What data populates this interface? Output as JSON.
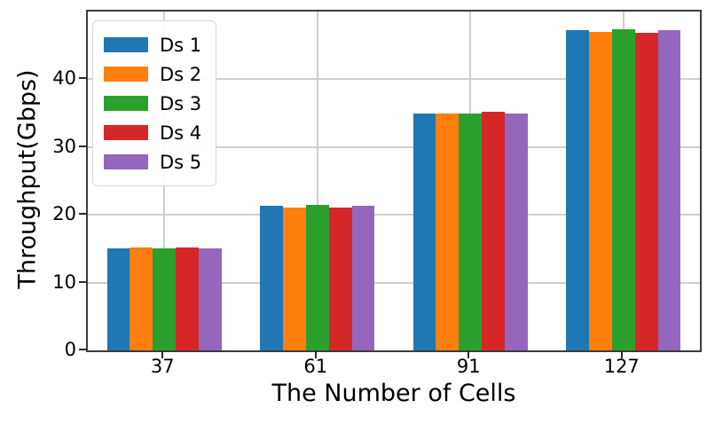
{
  "chart_data": {
    "type": "bar",
    "title": "",
    "xlabel": "The Number of Cells",
    "ylabel": "Throughput(Gbps)",
    "categories": [
      "37",
      "61",
      "91",
      "127"
    ],
    "series": [
      {
        "name": "Ds 1",
        "color": "#1f77b4",
        "values": [
          15.1,
          21.3,
          34.9,
          47.3
        ]
      },
      {
        "name": "Ds 2",
        "color": "#ff7f0e",
        "values": [
          15.2,
          21.1,
          34.9,
          47.0
        ]
      },
      {
        "name": "Ds 3",
        "color": "#2ca02c",
        "values": [
          15.1,
          21.5,
          34.9,
          47.4
        ]
      },
      {
        "name": "Ds 4",
        "color": "#d62728",
        "values": [
          15.2,
          21.1,
          35.2,
          46.8
        ]
      },
      {
        "name": "Ds 5",
        "color": "#9467bd",
        "values": [
          15.0,
          21.3,
          35.0,
          47.2
        ]
      }
    ],
    "ylim": [
      0,
      50
    ],
    "yticks": [
      0,
      10,
      20,
      30,
      40
    ],
    "grid": true,
    "grid_axes": "both",
    "legend_position": "upper-left",
    "bar_group_fraction": 0.75
  },
  "colors": {
    "background": "#ffffff",
    "spine": "#3c3c3c",
    "grid": "#cfcfcf",
    "tick": "#2b2b2b",
    "text": "#000000"
  }
}
